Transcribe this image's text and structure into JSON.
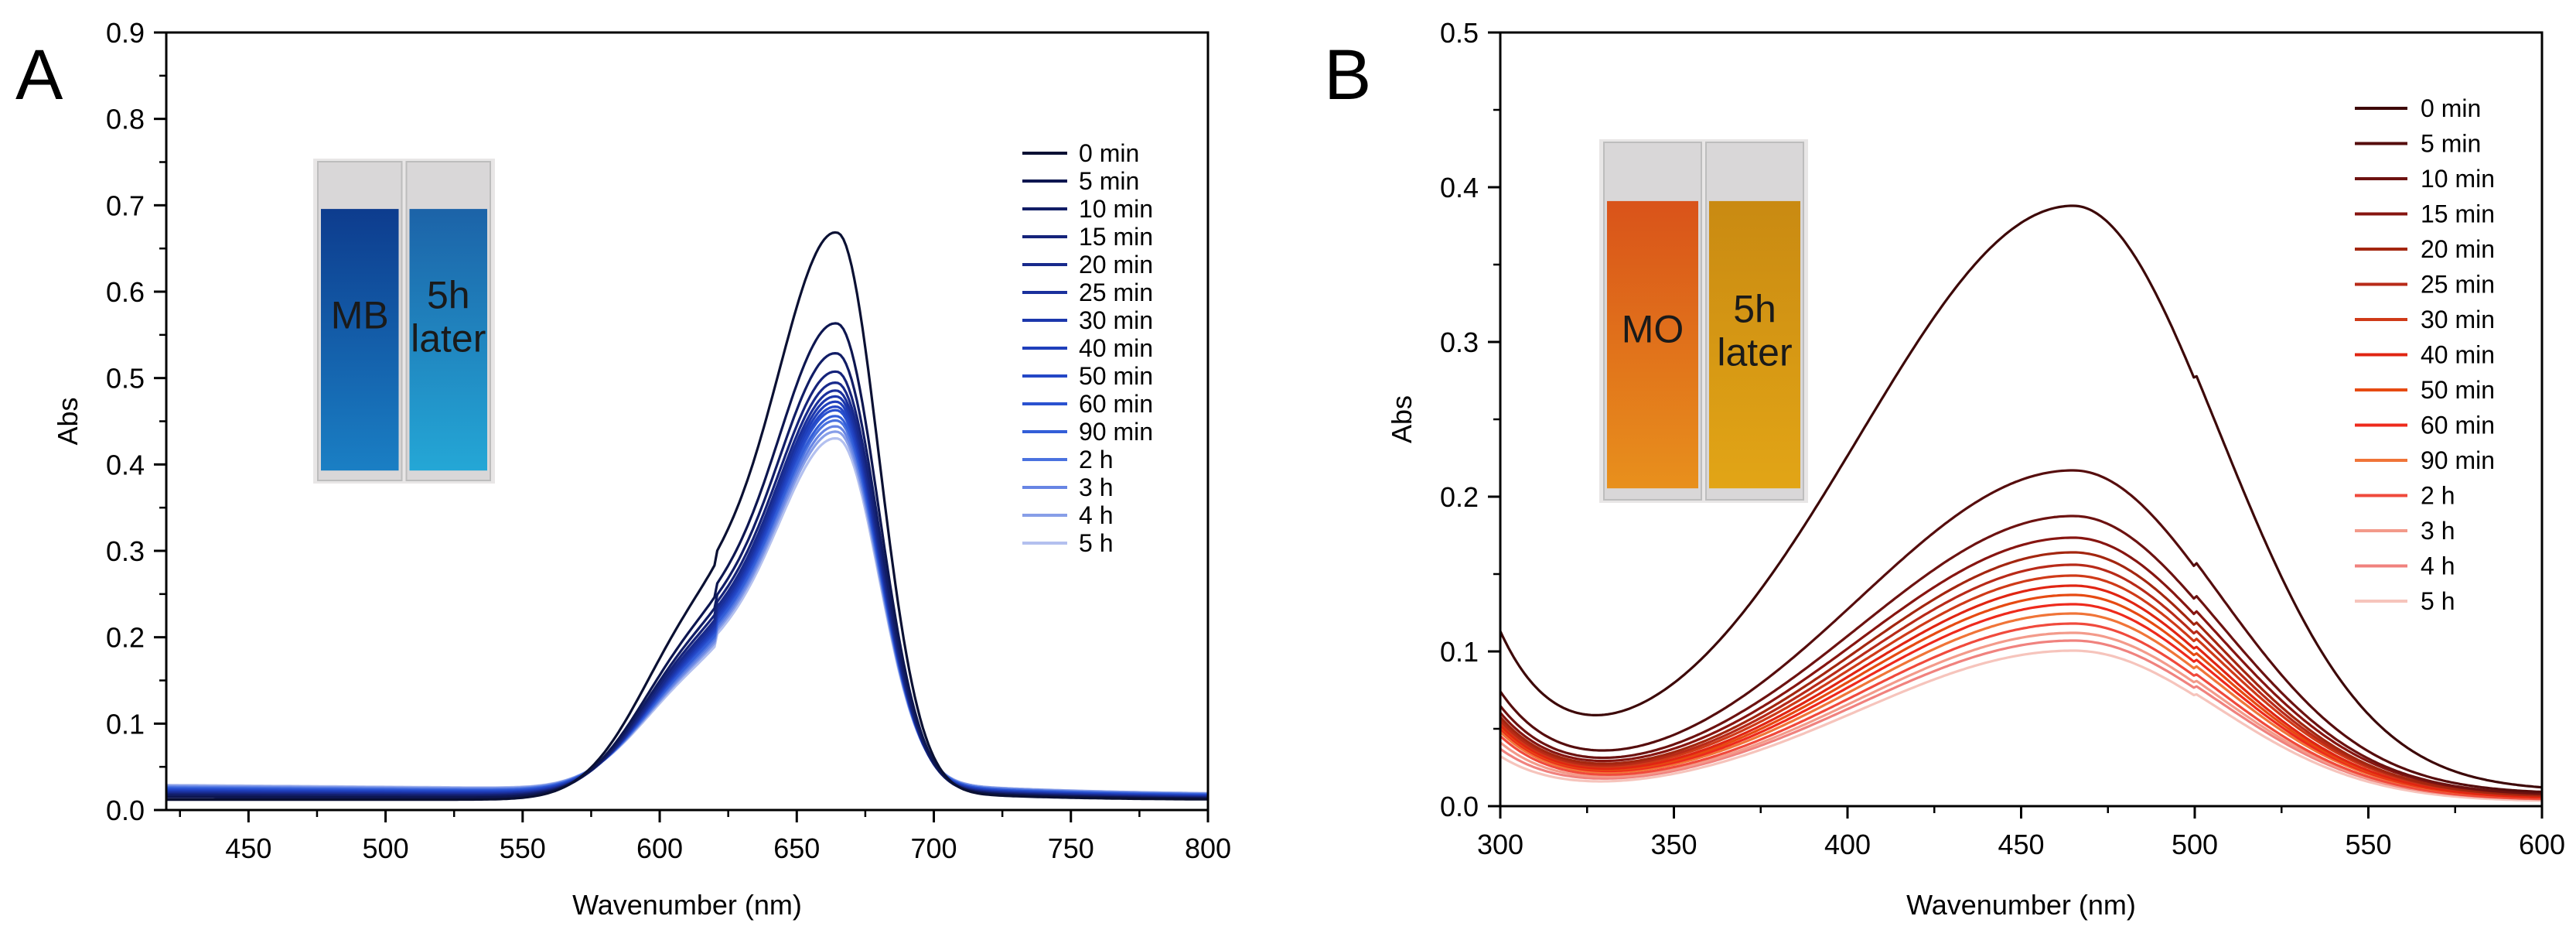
{
  "chart_data": [
    {
      "type": "line",
      "panel": "A",
      "title": "",
      "xlabel": "Wavenumber (nm)",
      "ylabel": "Abs",
      "xlim": [
        420,
        800
      ],
      "ylim": [
        0.0,
        0.9
      ],
      "xticks": [
        "450",
        "500",
        "550",
        "600",
        "650",
        "700",
        "750",
        "800"
      ],
      "yticks": [
        "0.0",
        "0.1",
        "0.2",
        "0.3",
        "0.4",
        "0.5",
        "0.6",
        "0.7",
        "0.8",
        "0.9"
      ],
      "grid": false,
      "legend_position": "top-right",
      "inset": {
        "labels": [
          "MB",
          "5h\nlater"
        ],
        "description": "cuvettes"
      },
      "series": [
        {
          "name": "0 min",
          "color": "#0a1033",
          "peak": 0.668,
          "shoulder": 0.355,
          "base_left": 0.012,
          "base_right": 0.012
        },
        {
          "name": "5 min",
          "color": "#0d1650",
          "peak": 0.562,
          "shoulder": 0.315,
          "base_left": 0.015,
          "base_right": 0.013
        },
        {
          "name": "10 min",
          "color": "#111d66",
          "peak": 0.527,
          "shoulder": 0.3,
          "base_left": 0.017,
          "base_right": 0.013
        },
        {
          "name": "15 min",
          "color": "#15237a",
          "peak": 0.505,
          "shoulder": 0.29,
          "base_left": 0.018,
          "base_right": 0.014
        },
        {
          "name": "20 min",
          "color": "#182a8c",
          "peak": 0.492,
          "shoulder": 0.282,
          "base_left": 0.019,
          "base_right": 0.014
        },
        {
          "name": "25 min",
          "color": "#1a309c",
          "peak": 0.482,
          "shoulder": 0.276,
          "base_left": 0.02,
          "base_right": 0.015
        },
        {
          "name": "30 min",
          "color": "#1c37ac",
          "peak": 0.475,
          "shoulder": 0.271,
          "base_left": 0.021,
          "base_right": 0.015
        },
        {
          "name": "40 min",
          "color": "#1f3fbb",
          "peak": 0.468,
          "shoulder": 0.266,
          "base_left": 0.022,
          "base_right": 0.016
        },
        {
          "name": "50 min",
          "color": "#2447c6",
          "peak": 0.462,
          "shoulder": 0.262,
          "base_left": 0.023,
          "base_right": 0.016
        },
        {
          "name": "60 min",
          "color": "#2a52d0",
          "peak": 0.457,
          "shoulder": 0.258,
          "base_left": 0.024,
          "base_right": 0.017
        },
        {
          "name": "90 min",
          "color": "#335ed8",
          "peak": 0.45,
          "shoulder": 0.252,
          "base_left": 0.025,
          "base_right": 0.017
        },
        {
          "name": "2 h",
          "color": "#4a72df",
          "peak": 0.444,
          "shoulder": 0.247,
          "base_left": 0.026,
          "base_right": 0.018
        },
        {
          "name": "3 h",
          "color": "#6785e4",
          "peak": 0.437,
          "shoulder": 0.242,
          "base_left": 0.027,
          "base_right": 0.018
        },
        {
          "name": "4 h",
          "color": "#879ee8",
          "peak": 0.43,
          "shoulder": 0.237,
          "base_left": 0.028,
          "base_right": 0.019
        },
        {
          "name": "5 h",
          "color": "#b3c0ef",
          "peak": 0.422,
          "shoulder": 0.231,
          "base_left": 0.029,
          "base_right": 0.019
        }
      ]
    },
    {
      "type": "line",
      "panel": "B",
      "title": "",
      "xlabel": "Wavenumber (nm)",
      "ylabel": "Abs",
      "xlim": [
        300,
        600
      ],
      "ylim": [
        0.0,
        0.5
      ],
      "xticks": [
        "300",
        "350",
        "400",
        "450",
        "500",
        "550",
        "600"
      ],
      "yticks": [
        "0.0",
        "0.1",
        "0.2",
        "0.3",
        "0.4",
        "0.5"
      ],
      "grid": false,
      "legend_position": "top-right",
      "inset": {
        "labels": [
          "MO",
          "5h\nlater"
        ],
        "description": "cuvettes"
      },
      "series": [
        {
          "name": "0 min",
          "color": "#3d0808",
          "peak": 0.383,
          "left_edge": 0.097,
          "valley": 0.04,
          "base_right": 0.01
        },
        {
          "name": "5 min",
          "color": "#560d0d",
          "peak": 0.213,
          "left_edge": 0.064,
          "valley": 0.034,
          "base_right": 0.008
        },
        {
          "name": "10 min",
          "color": "#6d1210",
          "peak": 0.184,
          "left_edge": 0.056,
          "valley": 0.03,
          "base_right": 0.007
        },
        {
          "name": "15 min",
          "color": "#871510",
          "peak": 0.17,
          "left_edge": 0.052,
          "valley": 0.028,
          "base_right": 0.007
        },
        {
          "name": "20 min",
          "color": "#a3260f",
          "peak": 0.161,
          "left_edge": 0.05,
          "valley": 0.027,
          "base_right": 0.006
        },
        {
          "name": "25 min",
          "color": "#b82a18",
          "peak": 0.153,
          "left_edge": 0.048,
          "valley": 0.026,
          "base_right": 0.006
        },
        {
          "name": "30 min",
          "color": "#cf3a18",
          "peak": 0.146,
          "left_edge": 0.047,
          "valley": 0.025,
          "base_right": 0.006
        },
        {
          "name": "40 min",
          "color": "#e02512",
          "peak": 0.14,
          "left_edge": 0.046,
          "valley": 0.024,
          "base_right": 0.005
        },
        {
          "name": "50 min",
          "color": "#e64a12",
          "peak": 0.134,
          "left_edge": 0.045,
          "valley": 0.023,
          "base_right": 0.005
        },
        {
          "name": "60 min",
          "color": "#ee2a1c",
          "peak": 0.128,
          "left_edge": 0.044,
          "valley": 0.022,
          "base_right": 0.005
        },
        {
          "name": "90 min",
          "color": "#f07438",
          "peak": 0.122,
          "left_edge": 0.042,
          "valley": 0.021,
          "base_right": 0.005
        },
        {
          "name": "2 h",
          "color": "#f04a3c",
          "peak": 0.116,
          "left_edge": 0.04,
          "valley": 0.02,
          "base_right": 0.004
        },
        {
          "name": "3 h",
          "color": "#f39a8a",
          "peak": 0.11,
          "left_edge": 0.036,
          "valley": 0.018,
          "base_right": 0.004
        },
        {
          "name": "4 h",
          "color": "#f0827e",
          "peak": 0.105,
          "left_edge": 0.032,
          "valley": 0.016,
          "base_right": 0.004
        },
        {
          "name": "5 h",
          "color": "#f6c4bc",
          "peak": 0.099,
          "left_edge": 0.028,
          "valley": 0.014,
          "base_right": 0.003
        }
      ]
    }
  ],
  "panel_labels": [
    "A",
    "B"
  ]
}
